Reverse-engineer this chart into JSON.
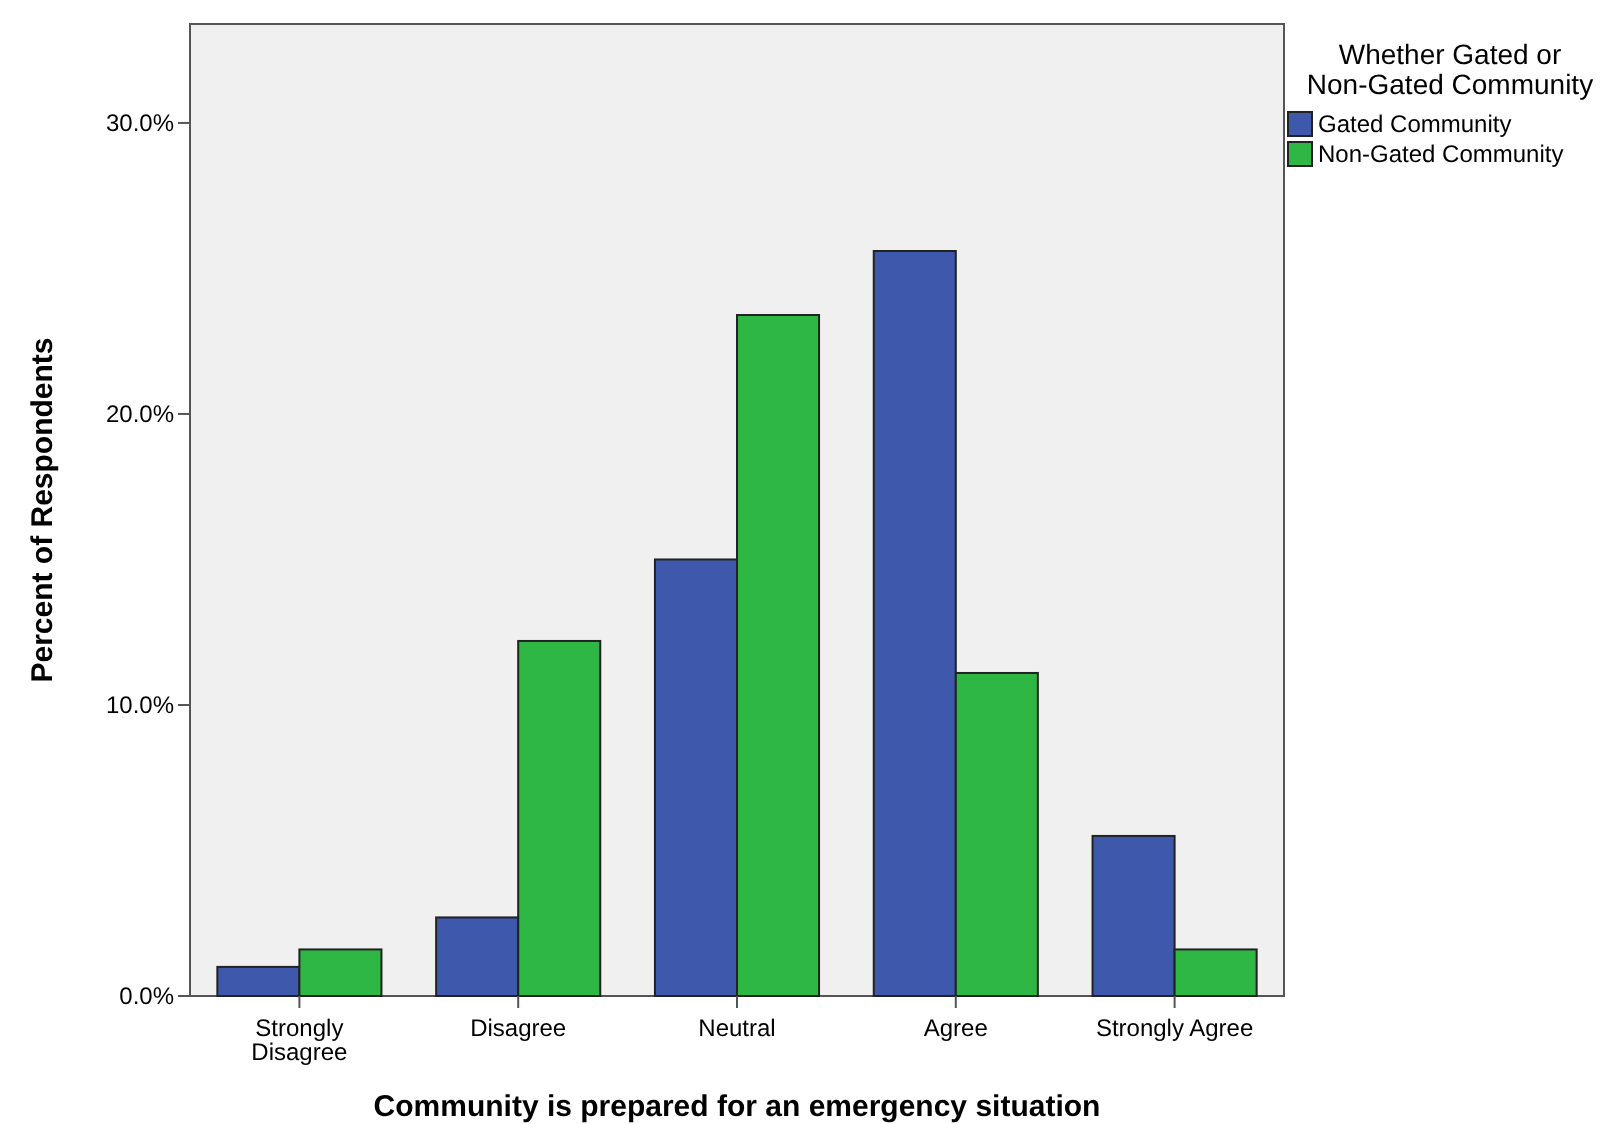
{
  "chart_data": {
    "type": "bar",
    "xlabel": "Community is prepared for an emergency situation",
    "ylabel": "Percent of Respondents",
    "legend_title": "Whether Gated or Non-Gated Community",
    "categories": [
      "Strongly Disagree",
      "Disagree",
      "Neutral",
      "Agree",
      "Strongly Agree"
    ],
    "series": [
      {
        "name": "Gated Community",
        "color": "#3e58ac",
        "values": [
          1.0,
          2.7,
          15.0,
          25.6,
          5.5
        ]
      },
      {
        "name": "Non-Gated Community",
        "color": "#2eb744",
        "values": [
          1.6,
          12.2,
          23.4,
          11.1,
          1.6
        ]
      }
    ],
    "ylim": [
      0,
      33.4
    ],
    "yticks": [
      {
        "value": 0,
        "label": "0.0%"
      },
      {
        "value": 10,
        "label": "10.0%"
      },
      {
        "value": 20,
        "label": "20.0%"
      },
      {
        "value": 30,
        "label": "30.0%"
      }
    ],
    "legend": "top right",
    "grid": false
  }
}
